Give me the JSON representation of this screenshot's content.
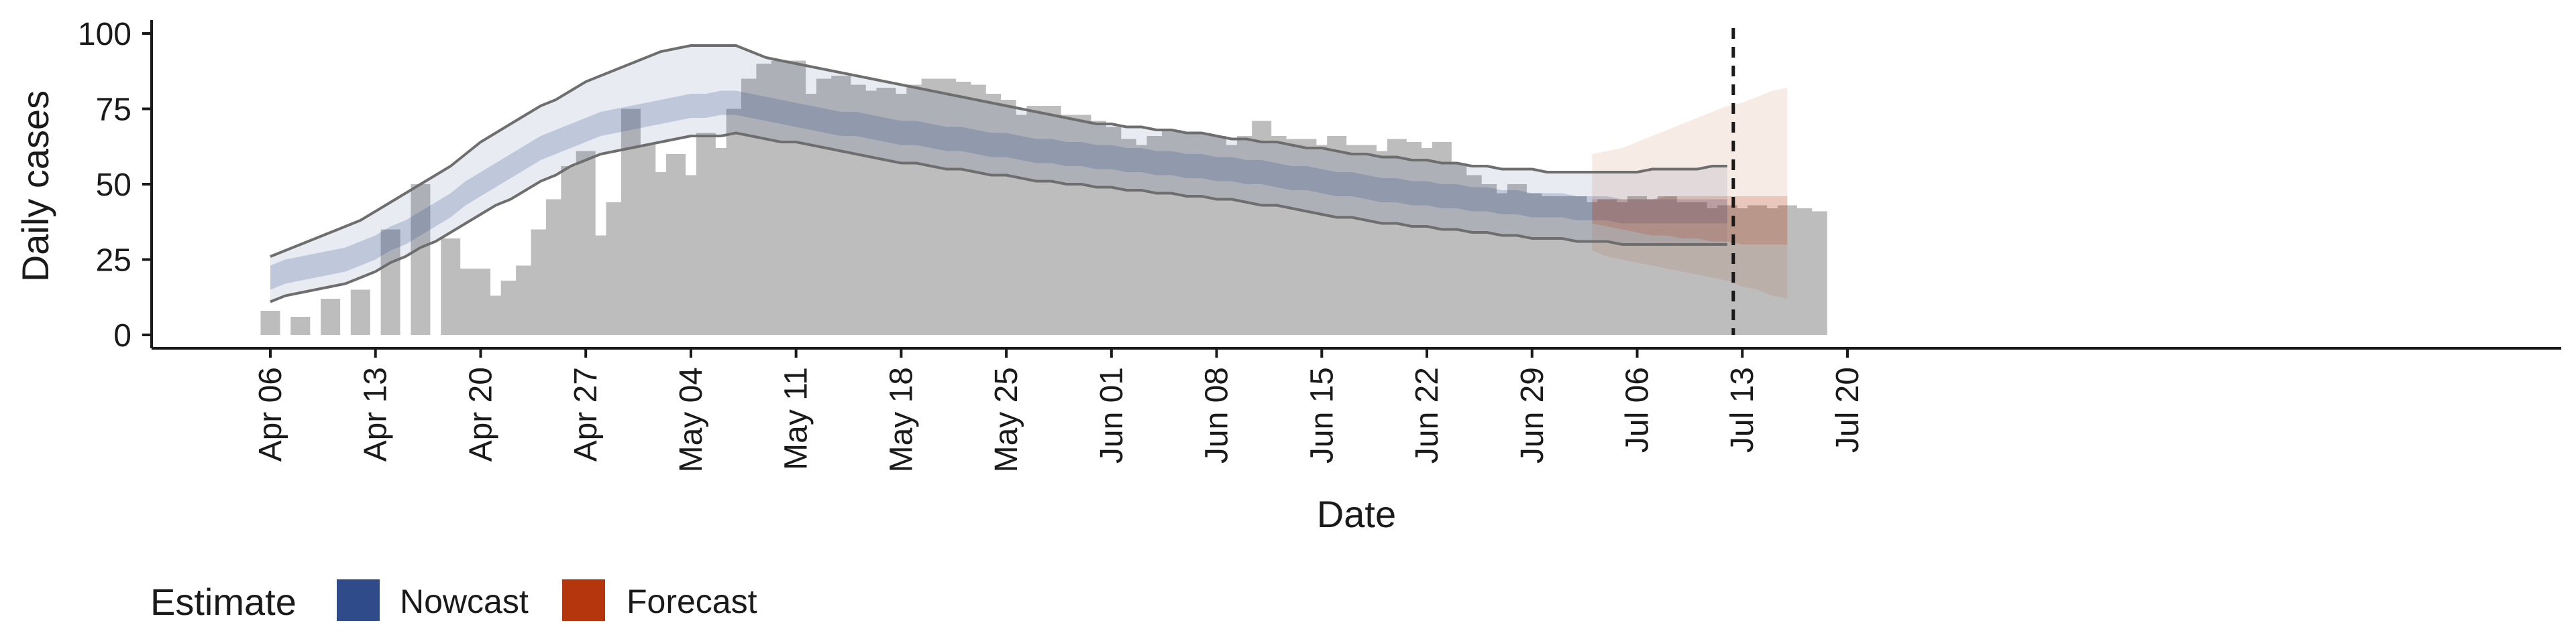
{
  "chart_data": {
    "type": "bar",
    "xlabel": "Date",
    "ylabel": "Daily cases",
    "ylim": [
      0,
      100
    ],
    "y_ticks": [
      0,
      25,
      50,
      75,
      100
    ],
    "x_tick_labels": [
      "Apr 06",
      "Apr 13",
      "Apr 20",
      "Apr 27",
      "May 04",
      "May 11",
      "May 18",
      "May 25",
      "Jun 01",
      "Jun 08",
      "Jun 15",
      "Jun 22",
      "Jun 29",
      "Jul 06",
      "Jul 13",
      "Jul 20"
    ],
    "x_start_date": "2020-04-05",
    "x_end_date": "2020-07-20",
    "forecast_date": "2020-07-12",
    "legend": {
      "title": "Estimate",
      "placement": "bottom-left",
      "entries": [
        {
          "label": "Nowcast",
          "color": "#2f4b8a"
        },
        {
          "label": "Forecast",
          "color": "#b5360c"
        }
      ]
    },
    "colors": {
      "bars": "#bdbdbd",
      "nowcast_band": "#2f4b8a",
      "forecast_band": "#b5360c",
      "outline": "#6e6e6e"
    },
    "reported_cases": {
      "start_date": "2020-04-06",
      "values": [
        8,
        null,
        6,
        null,
        12,
        null,
        15,
        null,
        35,
        null,
        50,
        null,
        32,
        22,
        22,
        13,
        18,
        23,
        35,
        45,
        56,
        61,
        33,
        44,
        75,
        63,
        54,
        60,
        53,
        67,
        62,
        75,
        85,
        90,
        91,
        91,
        80,
        85,
        86,
        83,
        81,
        82,
        80,
        83,
        85,
        85,
        84,
        83,
        80,
        78,
        73,
        76,
        76,
        73,
        73,
        71,
        69,
        65,
        63,
        66,
        68,
        67,
        67,
        66,
        63,
        66,
        71,
        66,
        65,
        65,
        63,
        66,
        63,
        63,
        61,
        65,
        64,
        62,
        64,
        57,
        53,
        50,
        47,
        50,
        47,
        46,
        46,
        46,
        44,
        45,
        44,
        46,
        45,
        46,
        44,
        44,
        42,
        43,
        42,
        43,
        42,
        43,
        42,
        41
      ]
    },
    "nowcast": {
      "start_date": "2020-04-06",
      "median": [
        19,
        21,
        22,
        23,
        24,
        25,
        27,
        29,
        32,
        34,
        37,
        40,
        43,
        47,
        50,
        53,
        56,
        59,
        62,
        64,
        66,
        68,
        70,
        71,
        72,
        73,
        74,
        75,
        76,
        76,
        77,
        77,
        76,
        75,
        74,
        73,
        72,
        71,
        70,
        70,
        69,
        68,
        67,
        67,
        66,
        65,
        65,
        64,
        63,
        63,
        62,
        61,
        61,
        60,
        60,
        59,
        59,
        58,
        58,
        57,
        57,
        56,
        56,
        55,
        55,
        54,
        54,
        53,
        52,
        52,
        51,
        50,
        50,
        49,
        48,
        48,
        47,
        47,
        46,
        46,
        45,
        45,
        44,
        44,
        43,
        43,
        43,
        42,
        42,
        42,
        41,
        41,
        41,
        41,
        41,
        41,
        41,
        41
      ],
      "ci50_low": [
        15,
        17,
        18,
        19,
        20,
        21,
        23,
        25,
        28,
        30,
        33,
        36,
        39,
        43,
        46,
        49,
        52,
        55,
        58,
        60,
        62,
        64,
        66,
        67,
        68,
        69,
        70,
        71,
        72,
        72,
        73,
        73,
        72,
        71,
        70,
        69,
        68,
        67,
        66,
        66,
        65,
        64,
        63,
        63,
        62,
        61,
        61,
        60,
        59,
        59,
        58,
        57,
        57,
        56,
        56,
        55,
        55,
        54,
        54,
        53,
        53,
        52,
        52,
        51,
        51,
        50,
        50,
        49,
        48,
        48,
        47,
        46,
        46,
        45,
        44,
        44,
        43,
        43,
        42,
        42,
        41,
        41,
        40,
        40,
        39,
        39,
        39,
        38,
        38,
        38,
        37,
        37,
        37,
        37,
        37,
        37,
        37,
        37
      ],
      "ci50_high": [
        23,
        25,
        26,
        27,
        28,
        29,
        31,
        33,
        36,
        38,
        41,
        44,
        47,
        51,
        54,
        57,
        60,
        63,
        66,
        68,
        70,
        72,
        74,
        75,
        76,
        77,
        78,
        79,
        80,
        80,
        81,
        81,
        80,
        79,
        78,
        77,
        76,
        75,
        74,
        74,
        73,
        72,
        71,
        71,
        70,
        69,
        69,
        68,
        67,
        67,
        66,
        65,
        65,
        64,
        64,
        63,
        63,
        62,
        62,
        61,
        61,
        60,
        60,
        59,
        59,
        58,
        58,
        57,
        56,
        56,
        55,
        54,
        54,
        53,
        52,
        52,
        51,
        51,
        50,
        50,
        49,
        49,
        48,
        48,
        47,
        47,
        47,
        46,
        46,
        46,
        45,
        45,
        45,
        45,
        45,
        45,
        45,
        45
      ],
      "ci90_low": [
        11,
        13,
        14,
        15,
        16,
        17,
        19,
        21,
        24,
        26,
        29,
        31,
        34,
        37,
        40,
        43,
        45,
        48,
        51,
        53,
        56,
        58,
        60,
        61,
        62,
        63,
        64,
        65,
        66,
        66,
        66,
        67,
        66,
        65,
        64,
        64,
        63,
        62,
        61,
        60,
        59,
        58,
        57,
        57,
        56,
        55,
        55,
        54,
        53,
        53,
        52,
        51,
        51,
        50,
        50,
        49,
        49,
        48,
        48,
        47,
        47,
        46,
        46,
        45,
        45,
        44,
        43,
        43,
        42,
        41,
        40,
        39,
        39,
        38,
        37,
        37,
        36,
        36,
        35,
        35,
        34,
        34,
        33,
        33,
        32,
        32,
        32,
        31,
        31,
        31,
        30,
        30,
        30,
        30,
        30,
        30,
        30,
        30
      ],
      "ci90_high": [
        26,
        28,
        30,
        32,
        34,
        36,
        38,
        41,
        44,
        47,
        50,
        53,
        56,
        60,
        64,
        67,
        70,
        73,
        76,
        78,
        81,
        84,
        86,
        88,
        90,
        92,
        94,
        95,
        96,
        96,
        96,
        96,
        94,
        92,
        91,
        90,
        89,
        88,
        87,
        86,
        85,
        84,
        83,
        82,
        81,
        80,
        79,
        78,
        77,
        76,
        75,
        74,
        73,
        72,
        71,
        70,
        70,
        69,
        69,
        68,
        68,
        67,
        67,
        66,
        65,
        65,
        64,
        64,
        63,
        62,
        62,
        61,
        60,
        60,
        59,
        59,
        58,
        58,
        57,
        57,
        56,
        56,
        55,
        55,
        55,
        54,
        54,
        54,
        54,
        54,
        54,
        54,
        55,
        55,
        55,
        55,
        56,
        56
      ]
    },
    "forecast": {
      "start_date": "2020-07-03",
      "median": [
        41,
        41,
        41,
        41,
        41,
        41,
        41,
        41,
        41,
        41,
        41,
        41,
        41,
        41
      ],
      "ci50_low": [
        37,
        36,
        35,
        34,
        33,
        33,
        32,
        32,
        31,
        31,
        30,
        30,
        30,
        30
      ],
      "ci50_high": [
        45,
        45,
        45,
        45,
        45,
        46,
        46,
        46,
        46,
        46,
        46,
        46,
        46,
        46
      ],
      "ci90_low": [
        28,
        26,
        25,
        24,
        23,
        22,
        21,
        20,
        19,
        18,
        16,
        15,
        13,
        12
      ],
      "ci90_high": [
        60,
        61,
        62,
        64,
        66,
        68,
        70,
        72,
        74,
        76,
        77,
        79,
        81,
        82
      ]
    }
  }
}
